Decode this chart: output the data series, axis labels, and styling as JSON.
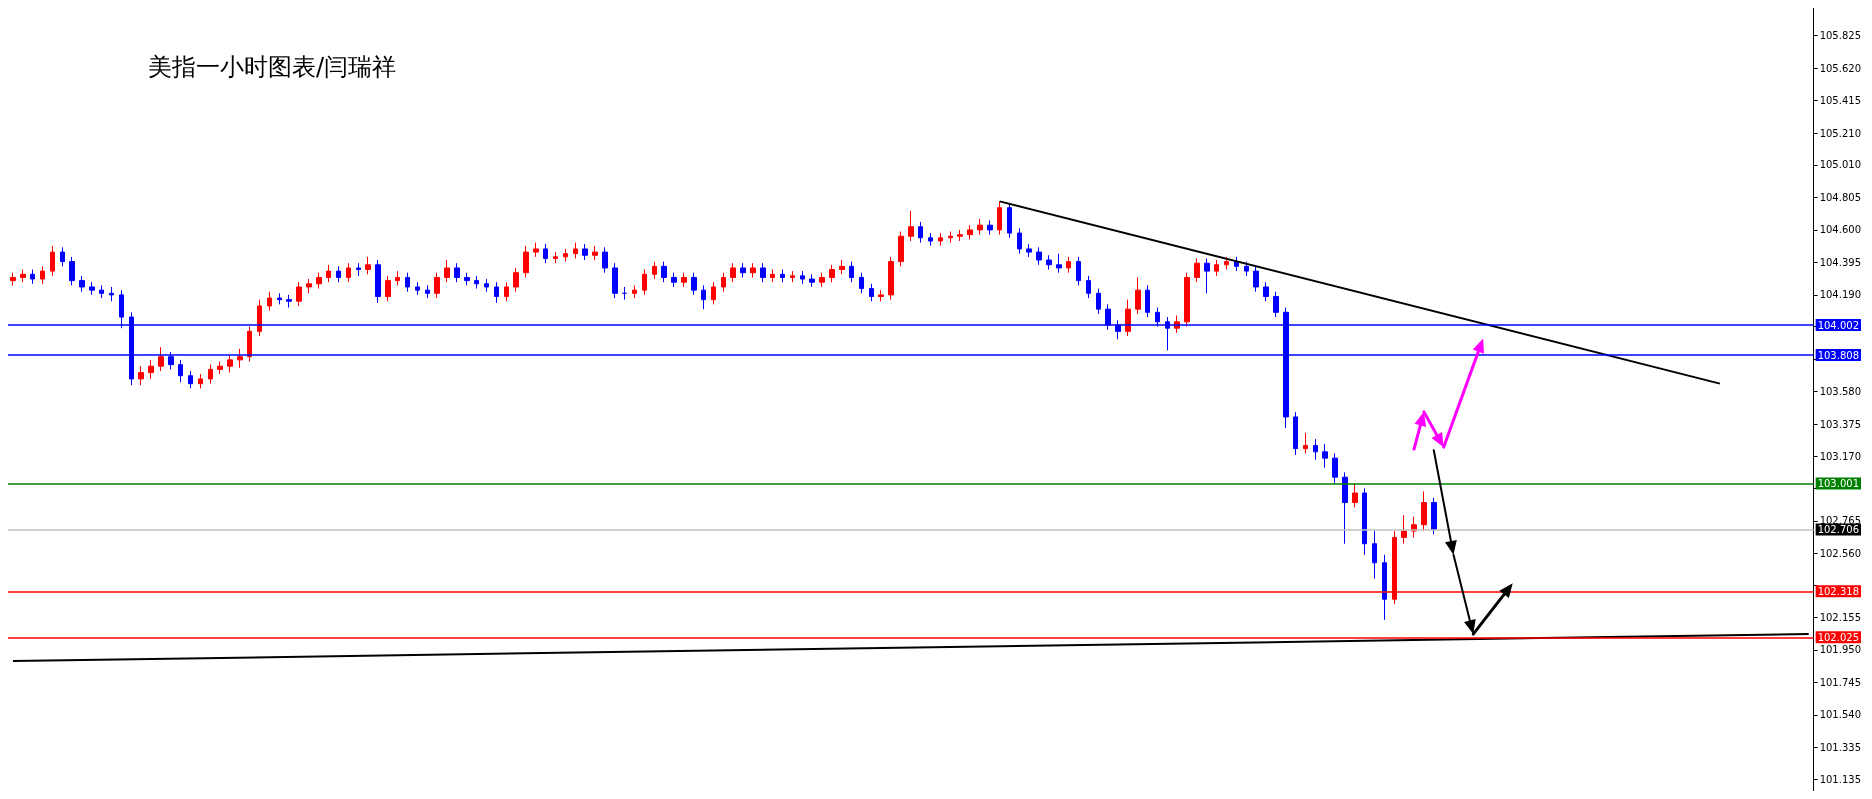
{
  "chart_data": {
    "type": "candlestick",
    "title": "美指一小时图表/闫瑞祥",
    "categories": [
      null,
      null,
      null,
      null,
      null,
      null,
      null,
      null,
      null,
      null,
      null,
      null,
      null,
      null,
      null,
      null,
      null,
      null,
      null,
      null,
      null,
      null,
      null,
      null,
      null,
      null,
      null,
      null,
      null,
      null,
      null,
      null,
      null,
      null,
      null,
      null,
      null,
      null,
      null,
      null,
      null,
      null,
      null,
      null,
      null,
      null,
      null,
      null,
      null,
      null,
      null,
      null,
      null,
      null,
      null,
      null,
      null,
      null,
      null,
      null,
      null,
      null,
      null,
      null,
      null,
      null,
      null,
      null,
      null,
      null,
      null,
      null,
      null,
      null,
      null,
      null,
      null,
      null,
      null,
      null,
      null,
      null,
      null,
      null,
      null,
      null,
      null,
      null,
      null,
      null,
      null,
      null,
      null,
      null,
      null,
      null,
      null,
      null,
      null,
      null,
      null,
      null,
      null,
      null,
      null,
      null,
      null,
      null,
      null,
      null,
      null,
      null,
      null,
      null,
      null,
      null,
      null,
      null,
      null,
      null,
      null,
      null,
      null,
      null,
      null,
      null,
      null,
      null,
      null,
      null,
      null,
      null,
      null,
      null,
      null,
      null,
      null,
      null,
      null,
      null,
      null,
      null,
      null,
      null,
      null,
      null,
      null,
      null,
      null,
      null,
      null,
      null,
      null,
      null,
      null,
      null,
      null,
      null,
      null,
      null,
      null,
      null,
      null,
      null,
      null,
      null,
      null,
      null,
      null,
      null,
      null,
      null,
      null,
      null,
      null,
      null,
      null,
      null,
      null,
      null,
      null,
      null,
      null
    ],
    "colors": [
      "#ff0000",
      "#ff0000",
      "#0000ff",
      "#ff0000",
      "#ff0000",
      "#0000ff",
      "#0000ff",
      "#0000ff",
      "#0000ff",
      "#0000ff",
      "#0000ff",
      "#0000ff",
      "#0000ff",
      "#ff0000",
      "#ff0000",
      "#ff0000",
      "#0000ff",
      "#0000ff",
      "#0000ff",
      "#ff0000",
      "#ff0000",
      "#ff0000",
      "#ff0000",
      "#ff0000",
      "#ff0000",
      "#ff0000",
      "#ff0000",
      "#0000ff",
      "#0000ff",
      "#ff0000",
      "#ff0000",
      "#ff0000",
      "#ff0000",
      "#0000ff",
      "#ff0000",
      "#0000ff",
      "#ff0000",
      "#0000ff",
      "#ff0000",
      "#ff0000",
      "#0000ff",
      "#0000ff",
      "#0000ff",
      "#ff0000",
      "#ff0000",
      "#0000ff",
      "#0000ff",
      "#0000ff",
      "#0000ff",
      "#0000ff",
      "#ff0000",
      "#ff0000",
      "#ff0000",
      "#ff0000",
      "#0000ff",
      "#ff0000",
      "#ff0000",
      "#ff0000",
      "#0000ff",
      "#ff0000",
      "#0000ff",
      "#0000ff",
      "#0000ff",
      "#ff0000",
      "#ff0000",
      "#ff0000",
      "#0000ff",
      "#0000ff",
      "#ff0000",
      "#0000ff",
      "#0000ff",
      "#ff0000",
      "#ff0000",
      "#ff0000",
      "#0000ff",
      "#ff0000",
      "#0000ff",
      "#ff0000",
      "#0000ff",
      "#ff0000",
      "#0000ff",
      "#0000ff",
      "#ff0000",
      "#ff0000",
      "#ff0000",
      "#0000ff",
      "#0000ff",
      "#0000ff",
      "#ff0000",
      "#ff0000",
      "#ff0000",
      "#ff0000",
      "#0000ff",
      "#0000ff",
      "#ff0000",
      "#ff0000",
      "#ff0000",
      "#ff0000",
      "#ff0000",
      "#0000ff",
      "#ff0000",
      "#0000ff",
      "#0000ff",
      "#0000ff",
      "#0000ff",
      "#0000ff",
      "#0000ff",
      "#ff0000",
      "#0000ff",
      "#0000ff",
      "#0000ff",
      "#0000ff",
      "#0000ff",
      "#ff0000",
      "#ff0000",
      "#0000ff",
      "#0000ff",
      "#0000ff",
      "#ff0000",
      "#ff0000",
      "#ff0000",
      "#0000ff",
      "#ff0000",
      "#ff0000",
      "#0000ff",
      "#0000ff",
      "#0000ff",
      "#0000ff",
      "#0000ff",
      "#0000ff",
      "#0000ff",
      "#ff0000",
      "#0000ff",
      "#0000ff",
      "#0000ff",
      "#0000ff",
      "#ff0000",
      "#0000ff",
      "#0000ff",
      "#0000ff",
      "#ff0000",
      "#ff0000",
      "#ff0000",
      "#ff0000",
      "#0000ff",
      null,
      null,
      null,
      null,
      null,
      null,
      null,
      null,
      null,
      null,
      null,
      null,
      null,
      null,
      null,
      null,
      null,
      null,
      null,
      null,
      null,
      null,
      null,
      null,
      null,
      null,
      null,
      null,
      null,
      null,
      null,
      null,
      null,
      null,
      null,
      null,
      null,
      null
    ],
    "ohlc": [
      [
        104.28,
        104.33,
        104.25,
        104.3
      ],
      [
        104.3,
        104.35,
        104.27,
        104.32
      ],
      [
        104.32,
        104.35,
        104.26,
        104.29
      ],
      [
        104.29,
        104.37,
        104.26,
        104.34
      ],
      [
        104.34,
        104.5,
        104.31,
        104.46
      ],
      [
        104.46,
        104.49,
        104.37,
        104.4
      ],
      [
        104.4,
        104.43,
        104.25,
        104.28
      ],
      [
        104.28,
        104.31,
        104.21,
        104.24
      ],
      [
        104.24,
        104.27,
        104.19,
        104.22
      ],
      [
        104.22,
        104.25,
        104.17,
        104.2
      ],
      [
        104.2,
        104.24,
        104.15,
        104.19
      ],
      [
        104.19,
        104.22,
        103.98,
        104.05
      ],
      [
        104.05,
        104.08,
        103.62,
        103.66
      ],
      [
        103.66,
        103.74,
        103.62,
        103.7
      ],
      [
        103.7,
        103.78,
        103.66,
        103.74
      ],
      [
        103.74,
        103.86,
        103.71,
        103.8
      ],
      [
        103.8,
        103.83,
        103.72,
        103.75
      ],
      [
        103.75,
        103.78,
        103.64,
        103.68
      ],
      [
        103.68,
        103.71,
        103.6,
        103.63
      ],
      [
        103.63,
        103.69,
        103.6,
        103.66
      ],
      [
        103.66,
        103.75,
        103.63,
        103.72
      ],
      [
        103.72,
        103.77,
        103.69,
        103.74
      ],
      [
        103.74,
        103.81,
        103.7,
        103.78
      ],
      [
        103.78,
        103.85,
        103.73,
        103.8
      ],
      [
        103.8,
        103.99,
        103.77,
        103.96
      ],
      [
        103.96,
        104.16,
        103.93,
        104.12
      ],
      [
        104.12,
        104.21,
        104.09,
        104.17
      ],
      [
        104.17,
        104.2,
        104.13,
        104.16
      ],
      [
        104.16,
        104.19,
        104.11,
        104.15
      ],
      [
        104.15,
        104.27,
        104.12,
        104.24
      ],
      [
        104.24,
        104.29,
        104.2,
        104.26
      ],
      [
        104.26,
        104.33,
        104.23,
        104.3
      ],
      [
        104.3,
        104.38,
        104.27,
        104.34
      ],
      [
        104.34,
        104.37,
        104.27,
        104.3
      ],
      [
        104.3,
        104.39,
        104.27,
        104.36
      ],
      [
        104.36,
        104.39,
        104.31,
        104.35
      ],
      [
        104.35,
        104.43,
        104.32,
        104.38
      ],
      [
        104.38,
        104.41,
        104.14,
        104.18
      ],
      [
        104.18,
        104.31,
        104.15,
        104.28
      ],
      [
        104.28,
        104.34,
        104.25,
        104.3
      ],
      [
        104.3,
        104.33,
        104.21,
        104.24
      ],
      [
        104.24,
        104.27,
        104.19,
        104.22
      ],
      [
        104.22,
        104.25,
        104.17,
        104.2
      ],
      [
        104.2,
        104.33,
        104.17,
        104.3
      ],
      [
        104.3,
        104.41,
        104.27,
        104.36
      ],
      [
        104.36,
        104.39,
        104.27,
        104.3
      ],
      [
        104.3,
        104.33,
        104.25,
        104.28
      ],
      [
        104.28,
        104.31,
        104.23,
        104.26
      ],
      [
        104.26,
        104.29,
        104.21,
        104.24
      ],
      [
        104.24,
        104.27,
        104.14,
        104.18
      ],
      [
        104.18,
        104.27,
        104.15,
        104.24
      ],
      [
        104.24,
        104.36,
        104.21,
        104.33
      ],
      [
        104.33,
        104.5,
        104.3,
        104.46
      ],
      [
        104.46,
        104.52,
        104.43,
        104.48
      ],
      [
        104.48,
        104.51,
        104.39,
        104.42
      ],
      [
        104.42,
        104.46,
        104.39,
        104.43
      ],
      [
        104.43,
        104.48,
        104.4,
        104.45
      ],
      [
        104.45,
        104.52,
        104.42,
        104.48
      ],
      [
        104.48,
        104.51,
        104.41,
        104.44
      ],
      [
        104.44,
        104.5,
        104.41,
        104.46
      ],
      [
        104.46,
        104.49,
        104.33,
        104.36
      ],
      [
        104.36,
        104.39,
        104.17,
        104.2
      ],
      [
        104.2,
        104.24,
        104.16,
        104.2
      ],
      [
        104.2,
        104.25,
        104.17,
        104.22
      ],
      [
        104.22,
        104.35,
        104.19,
        104.32
      ],
      [
        104.32,
        104.4,
        104.29,
        104.37
      ],
      [
        104.37,
        104.4,
        104.27,
        104.3
      ],
      [
        104.3,
        104.33,
        104.24,
        104.27
      ],
      [
        104.27,
        104.33,
        104.24,
        104.3
      ],
      [
        104.3,
        104.33,
        104.19,
        104.22
      ],
      [
        104.22,
        104.25,
        104.1,
        104.16
      ],
      [
        104.16,
        104.27,
        104.13,
        104.24
      ],
      [
        104.24,
        104.33,
        104.21,
        104.3
      ],
      [
        104.3,
        104.39,
        104.27,
        104.36
      ],
      [
        104.36,
        104.39,
        104.3,
        104.33
      ],
      [
        104.33,
        104.39,
        104.3,
        104.36
      ],
      [
        104.36,
        104.39,
        104.27,
        104.3
      ],
      [
        104.3,
        104.35,
        104.27,
        104.32
      ],
      [
        104.32,
        104.35,
        104.27,
        104.3
      ],
      [
        104.3,
        104.34,
        104.27,
        104.31
      ],
      [
        104.31,
        104.34,
        104.26,
        104.29
      ],
      [
        104.29,
        104.32,
        104.24,
        104.27
      ],
      [
        104.27,
        104.33,
        104.24,
        104.3
      ],
      [
        104.3,
        104.38,
        104.27,
        104.35
      ],
      [
        104.35,
        104.41,
        104.32,
        104.37
      ],
      [
        104.37,
        104.4,
        104.27,
        104.3
      ],
      [
        104.3,
        104.33,
        104.2,
        104.23
      ],
      [
        104.23,
        104.26,
        104.15,
        104.18
      ],
      [
        104.18,
        104.22,
        104.15,
        104.19
      ],
      [
        104.19,
        104.43,
        104.16,
        104.4
      ],
      [
        104.4,
        104.59,
        104.37,
        104.56
      ],
      [
        104.56,
        104.72,
        104.53,
        104.62
      ],
      [
        104.62,
        104.65,
        104.52,
        104.55
      ],
      [
        104.55,
        104.58,
        104.5,
        104.53
      ],
      [
        104.53,
        104.58,
        104.5,
        104.55
      ],
      [
        104.55,
        104.59,
        104.52,
        104.56
      ],
      [
        104.56,
        104.6,
        104.53,
        104.57
      ],
      [
        104.57,
        104.63,
        104.54,
        104.6
      ],
      [
        104.6,
        104.67,
        104.57,
        104.63
      ],
      [
        104.63,
        104.66,
        104.57,
        104.6
      ],
      [
        104.6,
        104.78,
        104.57,
        104.74
      ],
      [
        104.74,
        104.77,
        104.55,
        104.58
      ],
      [
        104.58,
        104.61,
        104.45,
        104.48
      ],
      [
        104.48,
        104.51,
        104.43,
        104.46
      ],
      [
        104.46,
        104.49,
        104.38,
        104.41
      ],
      [
        104.41,
        104.44,
        104.35,
        104.38
      ],
      [
        104.38,
        104.45,
        104.33,
        104.36
      ],
      [
        104.36,
        104.43,
        104.33,
        104.4
      ],
      [
        104.4,
        104.43,
        104.25,
        104.28
      ],
      [
        104.28,
        104.31,
        104.17,
        104.2
      ],
      [
        104.2,
        104.23,
        104.07,
        104.1
      ],
      [
        104.1,
        104.13,
        103.97,
        104.0
      ],
      [
        104.0,
        104.03,
        103.91,
        103.96
      ],
      [
        103.96,
        104.16,
        103.93,
        104.1
      ],
      [
        104.1,
        104.3,
        104.07,
        104.22
      ],
      [
        104.22,
        104.25,
        104.05,
        104.08
      ],
      [
        104.08,
        104.11,
        103.99,
        104.02
      ],
      [
        104.02,
        104.05,
        103.84,
        103.98
      ],
      [
        103.98,
        104.06,
        103.95,
        104.02
      ],
      [
        104.02,
        104.33,
        103.99,
        104.3
      ],
      [
        104.3,
        104.42,
        104.27,
        104.39
      ],
      [
        104.39,
        104.42,
        104.2,
        104.34
      ],
      [
        104.34,
        104.41,
        104.31,
        104.38
      ],
      [
        104.38,
        104.43,
        104.35,
        104.4
      ],
      [
        104.4,
        104.43,
        104.34,
        104.37
      ],
      [
        104.37,
        104.4,
        104.31,
        104.34
      ],
      [
        104.34,
        104.37,
        104.21,
        104.24
      ],
      [
        104.24,
        104.27,
        104.15,
        104.18
      ],
      [
        104.18,
        104.21,
        104.05,
        104.08
      ],
      [
        104.08,
        104.11,
        103.35,
        103.42
      ],
      [
        103.42,
        103.45,
        103.18,
        103.22
      ],
      [
        103.22,
        103.32,
        103.19,
        103.24
      ],
      [
        103.24,
        103.28,
        103.15,
        103.2
      ],
      [
        103.2,
        103.25,
        103.1,
        103.16
      ],
      [
        103.16,
        103.19,
        103.0,
        103.04
      ],
      [
        103.04,
        103.07,
        102.62,
        102.88
      ],
      [
        102.88,
        103.0,
        102.85,
        102.94
      ],
      [
        102.94,
        102.97,
        102.55,
        102.62
      ],
      [
        102.62,
        102.7,
        102.4,
        102.5
      ],
      [
        102.5,
        102.55,
        102.14,
        102.27
      ],
      [
        102.27,
        102.7,
        102.24,
        102.66
      ],
      [
        102.66,
        102.8,
        102.62,
        102.7
      ],
      [
        102.7,
        102.79,
        102.66,
        102.74
      ],
      [
        102.74,
        102.95,
        102.7,
        102.88
      ],
      [
        102.88,
        102.91,
        102.68,
        102.71
      ],
      null,
      null,
      null,
      null,
      null,
      null,
      null,
      null,
      null,
      null,
      null,
      null,
      null,
      null,
      null,
      null,
      null,
      null,
      null,
      null,
      null,
      null,
      null,
      null,
      null,
      null,
      null,
      null,
      null,
      null,
      null,
      null,
      null,
      null,
      null,
      null,
      null,
      null
    ],
    "series": [
      {
        "type": "line",
        "color": "#000000",
        "values": [
          null,
          null,
          null,
          null,
          null,
          null,
          null,
          null,
          null,
          null,
          null,
          null,
          null,
          null,
          null,
          null,
          null,
          null,
          null,
          null,
          null,
          null,
          null,
          null,
          null,
          null,
          null,
          null,
          null,
          null,
          null,
          null,
          null,
          null,
          null,
          null,
          null,
          null,
          null,
          null,
          null,
          null,
          null,
          null,
          null,
          null,
          null,
          null,
          null,
          null,
          null,
          null,
          null,
          null,
          null,
          null,
          null,
          null,
          null,
          null,
          null,
          null,
          null,
          null,
          null,
          null,
          null,
          null,
          null,
          null,
          null,
          null,
          null,
          null,
          null,
          null,
          null,
          null,
          null,
          null,
          null,
          null,
          null,
          null,
          null,
          null,
          null,
          null,
          null,
          null,
          null,
          null,
          null,
          null,
          null,
          null,
          null,
          null,
          null,
          null,
          104.78,
          null,
          null,
          null,
          null,
          null,
          null,
          null,
          null,
          null,
          null,
          null,
          null,
          null,
          null,
          null,
          null,
          null,
          null,
          null,
          null,
          null,
          null,
          null,
          null,
          null,
          null,
          null,
          null,
          null,
          null,
          null,
          null,
          null,
          null,
          null,
          null,
          null,
          null,
          null,
          null,
          null,
          null,
          null,
          null,
          null,
          null,
          null,
          null,
          null,
          null,
          null,
          null,
          null,
          null,
          null,
          null,
          null,
          null,
          null,
          null,
          null,
          null,
          null,
          null,
          null,
          null,
          null,
          null,
          null,
          null,
          null,
          null,
          103.63,
          null,
          null,
          null,
          null,
          null,
          null,
          null,
          null,
          null
        ]
      },
      {
        "type": "line",
        "color": "#000000",
        "values": [
          101.88,
          null,
          null,
          null,
          null,
          null,
          null,
          null,
          null,
          null,
          null,
          null,
          null,
          null,
          null,
          null,
          null,
          null,
          null,
          null,
          null,
          null,
          null,
          null,
          null,
          null,
          null,
          null,
          null,
          null,
          null,
          null,
          null,
          null,
          null,
          null,
          null,
          null,
          null,
          null,
          null,
          null,
          null,
          null,
          null,
          null,
          null,
          null,
          null,
          null,
          null,
          null,
          null,
          null,
          null,
          null,
          null,
          null,
          null,
          null,
          null,
          null,
          null,
          null,
          null,
          null,
          null,
          null,
          null,
          null,
          null,
          null,
          null,
          null,
          null,
          null,
          null,
          null,
          null,
          null,
          null,
          null,
          null,
          null,
          null,
          null,
          null,
          null,
          null,
          null,
          null,
          null,
          null,
          null,
          null,
          null,
          null,
          null,
          null,
          null,
          null,
          null,
          null,
          null,
          null,
          null,
          null,
          null,
          null,
          null,
          null,
          null,
          null,
          null,
          null,
          null,
          null,
          null,
          null,
          null,
          null,
          null,
          null,
          null,
          null,
          null,
          null,
          null,
          null,
          null,
          null,
          null,
          null,
          null,
          null,
          null,
          null,
          null,
          null,
          null,
          null,
          null,
          null,
          null,
          null,
          null,
          null,
          null,
          null,
          null,
          null,
          null,
          null,
          null,
          null,
          null,
          null,
          null,
          null,
          null,
          null,
          null,
          null,
          null,
          null,
          null,
          null,
          null,
          null,
          null,
          null,
          null,
          null,
          null,
          null,
          null,
          null,
          null,
          null,
          null,
          null,
          null,
          102.05
        ]
      }
    ],
    "ref_lines": [
      {
        "axis": "y",
        "value": 104.002,
        "label": "104.002",
        "color": "#0000ff"
      },
      {
        "axis": "y",
        "value": 103.808,
        "label": "103.808",
        "color": "#0000ff"
      },
      {
        "axis": "y",
        "value": 103.001,
        "label": "103.001",
        "color": "#008000"
      },
      {
        "axis": "y",
        "value": 102.706,
        "label": "102.706",
        "color": "#c0c0c0"
      },
      {
        "axis": "y",
        "value": 102.318,
        "label": "102.318",
        "color": "#ff0000"
      },
      {
        "axis": "y",
        "value": 102.025,
        "label": "102.025",
        "color": "#ff0000"
      }
    ],
    "ylim": [
      101.06,
      106.0
    ],
    "yticks": [
      101.135,
      101.335,
      {
        "value": 101.54,
        "label": "101.540"
      },
      101.745,
      {
        "value": 101.95,
        "label": "101.950"
      },
      102.155,
      {
        "value": 102.355,
        "label": null
      },
      {
        "value": 102.56,
        "label": "102.560"
      },
      102.765,
      {
        "value": 102.97,
        "label": null
      },
      {
        "value": 103.17,
        "label": "103.170"
      },
      103.375,
      {
        "value": 103.58,
        "label": "103.580"
      },
      {
        "value": 103.785,
        "label": null
      },
      {
        "value": 103.99,
        "label": null
      },
      {
        "value": 104.19,
        "label": "104.190"
      },
      104.395,
      {
        "value": 104.6,
        "label": "104.600"
      },
      104.805,
      {
        "value": 105.01,
        "label": "105.010"
      },
      {
        "value": 105.21,
        "label": "105.210"
      },
      105.415,
      {
        "value": 105.62,
        "label": "105.620"
      },
      105.825
    ],
    "tick_labels": "y"
  }
}
